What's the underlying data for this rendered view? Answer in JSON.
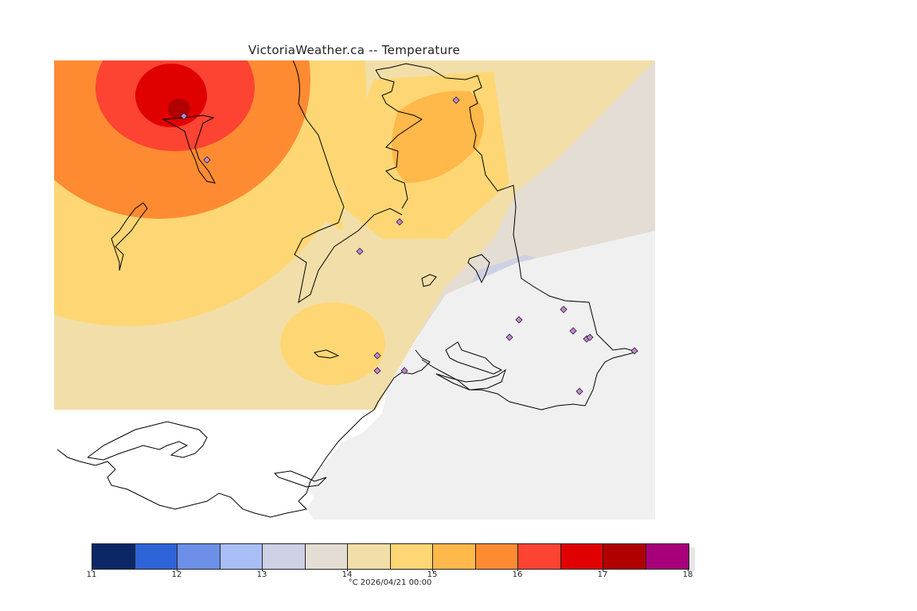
{
  "title": "VictoriaWeather.ca -- Temperature",
  "colorbar": {
    "colors": [
      "#0c2766",
      "#2f63d8",
      "#6c90e8",
      "#a9bef7",
      "#cdd1e3",
      "#e4ddd3",
      "#f2dea8",
      "#fed774",
      "#ffb84a",
      "#fe8b32",
      "#fd4332",
      "#e10000",
      "#b00000",
      "#a8007a"
    ],
    "ticks": [
      "11",
      "12",
      "13",
      "14",
      "15",
      "16",
      "17",
      "18"
    ]
  },
  "caption": "°C  2026/04/21 00:00",
  "map_colors": {
    "background": "#f0f0f0",
    "land_unshaded": "#ffffff",
    "coast": "#000000"
  },
  "icon": "station-marker-diamond"
}
